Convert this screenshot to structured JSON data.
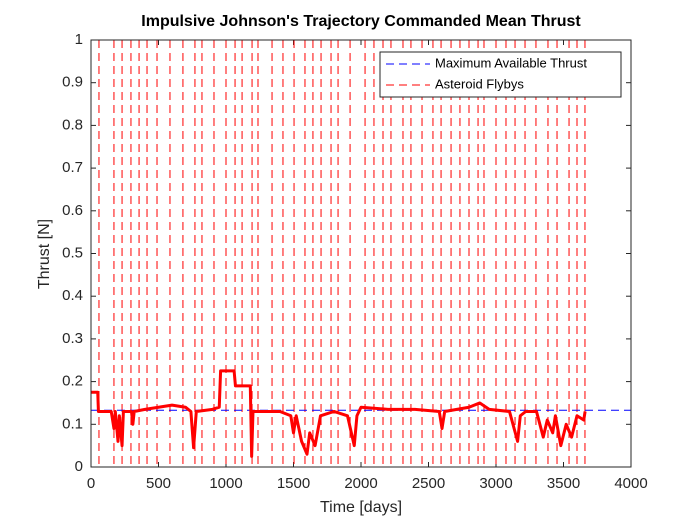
{
  "chart_data": {
    "type": "line",
    "title": "Impulsive Johnson's Trajectory Commanded Mean Thrust",
    "xlabel": "Time [days]",
    "ylabel": "Thrust [N]",
    "xlim": [
      0,
      4000
    ],
    "ylim": [
      0,
      1
    ],
    "xticks": [
      0,
      500,
      1000,
      1500,
      2000,
      2500,
      3000,
      3500,
      4000
    ],
    "yticks": [
      0,
      0.1,
      0.2,
      0.3,
      0.4,
      0.5,
      0.6,
      0.7,
      0.8,
      0.9,
      1
    ],
    "legend": "northeast",
    "series": [
      {
        "color": "#ff0000",
        "x": [
          0,
          50,
          55,
          150,
          170,
          180,
          200,
          210,
          230,
          240,
          300,
          310,
          320,
          400,
          500,
          600,
          700,
          740,
          760,
          780,
          900,
          950,
          960,
          1060,
          1070,
          1180,
          1190,
          1200,
          1300,
          1400,
          1480,
          1500,
          1520,
          1560,
          1600,
          1620,
          1660,
          1700,
          1800,
          1900,
          1950,
          1970,
          2000,
          2200,
          2400,
          2580,
          2600,
          2620,
          2800,
          2880,
          2950,
          3100,
          3160,
          3180,
          3220,
          3300,
          3350,
          3380,
          3420,
          3440,
          3480,
          3520,
          3560,
          3600,
          3650,
          3660
        ],
        "values": [
          0.175,
          0.175,
          0.13,
          0.13,
          0.09,
          0.13,
          0.06,
          0.12,
          0.05,
          0.13,
          0.13,
          0.1,
          0.13,
          0.135,
          0.14,
          0.145,
          0.14,
          0.13,
          0.045,
          0.13,
          0.135,
          0.14,
          0.225,
          0.225,
          0.19,
          0.19,
          0.025,
          0.13,
          0.13,
          0.13,
          0.12,
          0.08,
          0.12,
          0.06,
          0.03,
          0.08,
          0.05,
          0.12,
          0.13,
          0.12,
          0.05,
          0.12,
          0.14,
          0.135,
          0.135,
          0.13,
          0.09,
          0.13,
          0.14,
          0.15,
          0.135,
          0.13,
          0.06,
          0.12,
          0.13,
          0.13,
          0.07,
          0.11,
          0.08,
          0.12,
          0.05,
          0.1,
          0.07,
          0.12,
          0.11,
          0.13
        ]
      }
    ],
    "max_thrust": {
      "name": "Maximum Available Thrust",
      "color": "#0000ff",
      "value": 0.133
    },
    "flybys": {
      "name": "Asteroid Flybys",
      "color": "#ff0000",
      "x": [
        59,
        170,
        230,
        296,
        356,
        415,
        489,
        585,
        681,
        770,
        822,
        911,
        1000,
        1067,
        1119,
        1193,
        1237,
        1341,
        1422,
        1504,
        1585,
        1644,
        1704,
        1778,
        1830,
        1919,
        2030,
        2096,
        2163,
        2222,
        2311,
        2370,
        2452,
        2533,
        2593,
        2667,
        2733,
        2800,
        2867,
        2911,
        3000,
        3074,
        3141,
        3215,
        3296,
        3385,
        3452,
        3541,
        3600,
        3659
      ]
    }
  }
}
